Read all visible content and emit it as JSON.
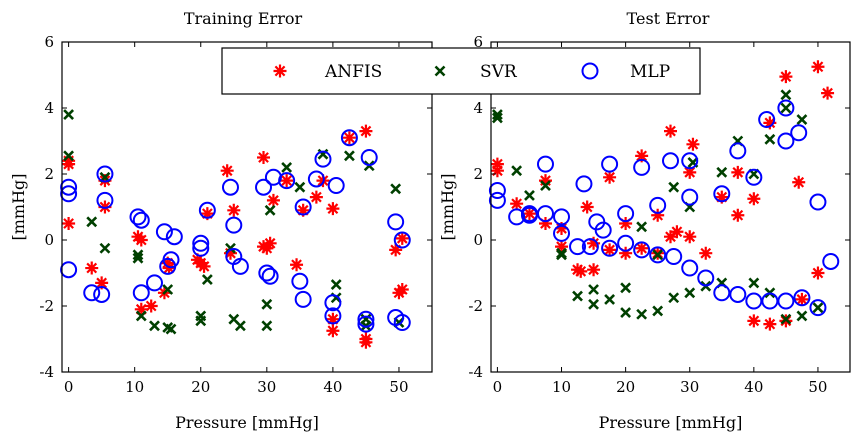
{
  "colors": {
    "ANFIS": "#ff0000",
    "SVR": "#004000",
    "MLP": "#0000ff",
    "axis": "#000000"
  },
  "legend": {
    "placement": "top-center",
    "entries": [
      "ANFIS",
      "SVR",
      "MLP"
    ]
  },
  "chart_data": [
    {
      "type": "scatter",
      "title": "Training Error",
      "xlabel": "Pressure [mmHg]",
      "ylabel": "[mmHg]",
      "xlim": [
        -1,
        55
      ],
      "ylim": [
        -4,
        6
      ],
      "xticks": [
        0,
        10,
        20,
        30,
        40,
        50
      ],
      "yticks": [
        -4,
        -2,
        0,
        2,
        4,
        6
      ],
      "series": [
        {
          "name": "ANFIS",
          "marker": "asterisk",
          "points": [
            [
              0,
              0.5
            ],
            [
              0,
              2.3
            ],
            [
              0,
              2.4
            ],
            [
              3.5,
              -0.85
            ],
            [
              5,
              -1.3
            ],
            [
              5.5,
              1.8
            ],
            [
              5.5,
              1.0
            ],
            [
              10.5,
              0.1
            ],
            [
              11,
              0.0
            ],
            [
              11,
              -2.1
            ],
            [
              12.5,
              -2.0
            ],
            [
              14.5,
              -1.6
            ],
            [
              15,
              -0.7
            ],
            [
              15.2,
              -0.85
            ],
            [
              19.5,
              -0.6
            ],
            [
              20,
              -0.7
            ],
            [
              20.5,
              -0.8
            ],
            [
              21,
              0.8
            ],
            [
              24,
              2.1
            ],
            [
              24.5,
              -0.4
            ],
            [
              25,
              0.9
            ],
            [
              29.5,
              2.5
            ],
            [
              29.5,
              -0.2
            ],
            [
              30,
              -0.25
            ],
            [
              30.5,
              -0.1
            ],
            [
              31,
              1.2
            ],
            [
              33,
              1.8
            ],
            [
              34.5,
              -0.75
            ],
            [
              35.5,
              0.9
            ],
            [
              37.5,
              1.3
            ],
            [
              38.5,
              1.8
            ],
            [
              40,
              0.95
            ],
            [
              40,
              -2.4
            ],
            [
              40,
              -2.75
            ],
            [
              42.5,
              3.1
            ],
            [
              45,
              3.3
            ],
            [
              45,
              -3.0
            ],
            [
              45,
              -3.1
            ],
            [
              49.5,
              -0.3
            ],
            [
              50,
              -1.6
            ],
            [
              50.5,
              0.05
            ],
            [
              50.5,
              -1.5
            ]
          ]
        },
        {
          "name": "SVR",
          "marker": "x",
          "points": [
            [
              0,
              3.8
            ],
            [
              0,
              2.55
            ],
            [
              3.5,
              0.55
            ],
            [
              5.5,
              -0.25
            ],
            [
              5.5,
              1.9
            ],
            [
              10.5,
              -0.45
            ],
            [
              10.5,
              -0.55
            ],
            [
              11,
              -2.3
            ],
            [
              13,
              -2.6
            ],
            [
              15,
              -1.5
            ],
            [
              15,
              -2.65
            ],
            [
              15.5,
              -2.7
            ],
            [
              20,
              -2.3
            ],
            [
              20,
              -2.45
            ],
            [
              21,
              -1.2
            ],
            [
              24.5,
              -0.25
            ],
            [
              25,
              -2.4
            ],
            [
              26,
              -2.6
            ],
            [
              30,
              -1.95
            ],
            [
              30,
              -2.6
            ],
            [
              30.5,
              0.9
            ],
            [
              33,
              2.2
            ],
            [
              35,
              1.6
            ],
            [
              38.5,
              2.6
            ],
            [
              40.5,
              -1.35
            ],
            [
              40.5,
              -1.75
            ],
            [
              42.5,
              2.55
            ],
            [
              45,
              -2.4
            ],
            [
              45,
              -2.6
            ],
            [
              45.5,
              2.25
            ],
            [
              49.5,
              1.55
            ],
            [
              50,
              -2.5
            ]
          ]
        },
        {
          "name": "MLP",
          "marker": "circle",
          "points": [
            [
              0,
              -0.9
            ],
            [
              0,
              1.4
            ],
            [
              0,
              1.6
            ],
            [
              3.5,
              -1.6
            ],
            [
              5,
              -1.65
            ],
            [
              5.5,
              2.0
            ],
            [
              5.5,
              1.2
            ],
            [
              10.5,
              0.7
            ],
            [
              11,
              0.6
            ],
            [
              11,
              -1.6
            ],
            [
              13,
              -1.3
            ],
            [
              14.5,
              0.25
            ],
            [
              15,
              -0.8
            ],
            [
              15.5,
              -0.6
            ],
            [
              16,
              0.1
            ],
            [
              20,
              -0.1
            ],
            [
              20,
              -0.25
            ],
            [
              21,
              0.9
            ],
            [
              24.5,
              1.6
            ],
            [
              25,
              0.45
            ],
            [
              25,
              -0.5
            ],
            [
              26,
              -0.8
            ],
            [
              29.5,
              1.6
            ],
            [
              30,
              -1.0
            ],
            [
              30.5,
              -1.1
            ],
            [
              31,
              1.9
            ],
            [
              33,
              1.8
            ],
            [
              35,
              -1.25
            ],
            [
              35.5,
              1.0
            ],
            [
              35.5,
              -1.8
            ],
            [
              37.5,
              1.85
            ],
            [
              38.5,
              2.45
            ],
            [
              40,
              -1.9
            ],
            [
              40,
              -2.3
            ],
            [
              40.5,
              1.65
            ],
            [
              42.5,
              3.1
            ],
            [
              45,
              -2.4
            ],
            [
              45,
              -2.55
            ],
            [
              45.5,
              2.5
            ],
            [
              49.5,
              0.55
            ],
            [
              49.5,
              -2.35
            ],
            [
              50.5,
              -2.5
            ],
            [
              50.5,
              0.0
            ]
          ]
        }
      ]
    },
    {
      "type": "scatter",
      "title": "Test Error",
      "xlabel": "Pressure [mmHg]",
      "ylabel": "[mmHg]",
      "xlim": [
        -1,
        55
      ],
      "ylim": [
        -4,
        6
      ],
      "xticks": [
        0,
        10,
        20,
        30,
        40,
        50
      ],
      "yticks": [
        -4,
        -2,
        0,
        2,
        4,
        6
      ],
      "series": [
        {
          "name": "ANFIS",
          "marker": "asterisk",
          "points": [
            [
              0,
              2.3
            ],
            [
              0,
              2.1
            ],
            [
              3,
              1.1
            ],
            [
              5,
              0.8
            ],
            [
              7.5,
              0.5
            ],
            [
              7.5,
              1.8
            ],
            [
              10,
              0.35
            ],
            [
              10,
              -0.2
            ],
            [
              12.5,
              -0.9
            ],
            [
              13,
              -0.95
            ],
            [
              14,
              1.0
            ],
            [
              15,
              -0.9
            ],
            [
              15,
              -0.1
            ],
            [
              17.5,
              1.9
            ],
            [
              17.5,
              -0.3
            ],
            [
              20,
              -0.4
            ],
            [
              20,
              0.5
            ],
            [
              22.5,
              -0.25
            ],
            [
              22.5,
              2.55
            ],
            [
              25,
              -0.4
            ],
            [
              25,
              0.75
            ],
            [
              27,
              0.1
            ],
            [
              27,
              3.3
            ],
            [
              28,
              0.25
            ],
            [
              30,
              0.1
            ],
            [
              30,
              2.05
            ],
            [
              30.5,
              2.9
            ],
            [
              32.5,
              -0.4
            ],
            [
              35,
              1.3
            ],
            [
              37.5,
              0.75
            ],
            [
              37.5,
              2.05
            ],
            [
              40,
              1.25
            ],
            [
              40,
              -2.45
            ],
            [
              42.5,
              3.55
            ],
            [
              42.5,
              -2.55
            ],
            [
              45,
              4.95
            ],
            [
              45,
              -2.45
            ],
            [
              47,
              1.75
            ],
            [
              47.5,
              -1.8
            ],
            [
              50,
              5.25
            ],
            [
              50,
              -1.0
            ],
            [
              51.5,
              4.45
            ]
          ]
        },
        {
          "name": "SVR",
          "marker": "x",
          "points": [
            [
              0,
              3.8
            ],
            [
              0,
              3.7
            ],
            [
              3,
              2.1
            ],
            [
              5,
              1.35
            ],
            [
              7.5,
              1.65
            ],
            [
              10,
              -0.4
            ],
            [
              10,
              -0.45
            ],
            [
              12.5,
              -1.7
            ],
            [
              15,
              -1.5
            ],
            [
              15,
              -1.95
            ],
            [
              17.5,
              -1.8
            ],
            [
              20,
              -1.45
            ],
            [
              20,
              -2.2
            ],
            [
              22.5,
              -2.25
            ],
            [
              22.5,
              0.4
            ],
            [
              25,
              -0.45
            ],
            [
              25,
              -2.15
            ],
            [
              27.5,
              -1.75
            ],
            [
              27.5,
              1.6
            ],
            [
              30,
              -1.6
            ],
            [
              30,
              1.0
            ],
            [
              30.5,
              2.35
            ],
            [
              32.5,
              -1.4
            ],
            [
              35,
              2.05
            ],
            [
              35,
              -1.3
            ],
            [
              37.5,
              3.0
            ],
            [
              40,
              2.0
            ],
            [
              40,
              -1.3
            ],
            [
              42.5,
              3.05
            ],
            [
              42.5,
              -1.6
            ],
            [
              45,
              4.4
            ],
            [
              45,
              4.0
            ],
            [
              45,
              -2.4
            ],
            [
              47.5,
              3.65
            ],
            [
              47.5,
              -2.3
            ],
            [
              50,
              -2.05
            ]
          ]
        },
        {
          "name": "MLP",
          "marker": "circle",
          "points": [
            [
              0,
              1.5
            ],
            [
              0,
              1.2
            ],
            [
              3,
              0.7
            ],
            [
              5,
              0.8
            ],
            [
              5,
              0.75
            ],
            [
              7.5,
              2.3
            ],
            [
              7.5,
              0.8
            ],
            [
              10,
              0.7
            ],
            [
              10,
              0.2
            ],
            [
              12.5,
              -0.2
            ],
            [
              13.5,
              1.7
            ],
            [
              14.5,
              -0.2
            ],
            [
              15.5,
              0.55
            ],
            [
              16.5,
              0.3
            ],
            [
              17.5,
              2.3
            ],
            [
              17.5,
              -0.25
            ],
            [
              20,
              0.8
            ],
            [
              20,
              -0.1
            ],
            [
              22.5,
              2.2
            ],
            [
              22.5,
              -0.3
            ],
            [
              25,
              1.05
            ],
            [
              25,
              -0.45
            ],
            [
              27,
              2.4
            ],
            [
              27.5,
              -0.5
            ],
            [
              30,
              2.4
            ],
            [
              30,
              1.3
            ],
            [
              30,
              -0.85
            ],
            [
              32.5,
              -1.15
            ],
            [
              35,
              1.4
            ],
            [
              35,
              -1.6
            ],
            [
              37.5,
              2.7
            ],
            [
              37.5,
              -1.65
            ],
            [
              40,
              1.9
            ],
            [
              40,
              -1.85
            ],
            [
              42,
              3.65
            ],
            [
              42.5,
              -1.85
            ],
            [
              45,
              4.0
            ],
            [
              45,
              3.0
            ],
            [
              45,
              -1.85
            ],
            [
              47,
              3.25
            ],
            [
              47.5,
              -1.75
            ],
            [
              50,
              1.15
            ],
            [
              50,
              -2.05
            ],
            [
              52,
              -0.65
            ]
          ]
        }
      ]
    }
  ]
}
